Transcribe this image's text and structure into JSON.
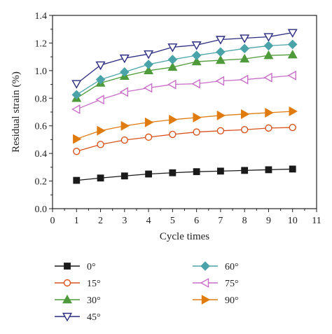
{
  "chart_data": {
    "type": "line",
    "title": "",
    "xlabel": "Cycle times",
    "ylabel": "Residual strain (%)",
    "xlim": [
      0,
      11
    ],
    "ylim": [
      0,
      1.4
    ],
    "xticks": [
      "0",
      "1",
      "2",
      "3",
      "4",
      "5",
      "6",
      "7",
      "8",
      "9",
      "10",
      "11"
    ],
    "yticks": [
      "0.0",
      "0.2",
      "0.4",
      "0.6",
      "0.8",
      "1.0",
      "1.2",
      "1.4"
    ],
    "grid": false,
    "legend_position": "bottom",
    "x": [
      1,
      2,
      3,
      4,
      5,
      6,
      7,
      8,
      9,
      10
    ],
    "series": [
      {
        "name": "0°",
        "color": "#1a1a1a",
        "marker": "square-filled",
        "values": [
          0.205,
          0.222,
          0.237,
          0.251,
          0.26,
          0.268,
          0.272,
          0.277,
          0.282,
          0.287
        ]
      },
      {
        "name": "15°",
        "color": "#d9531e",
        "marker": "circle-open",
        "values": [
          0.415,
          0.465,
          0.497,
          0.518,
          0.538,
          0.555,
          0.564,
          0.572,
          0.584,
          0.588
        ]
      },
      {
        "name": "30°",
        "color": "#4f9a3a",
        "marker": "triangle-up-filled",
        "values": [
          0.8,
          0.91,
          0.96,
          1.0,
          1.025,
          1.065,
          1.075,
          1.085,
          1.11,
          1.115
        ]
      },
      {
        "name": "45°",
        "color": "#2b2b80",
        "marker": "triangle-down-open",
        "values": [
          0.905,
          1.04,
          1.09,
          1.12,
          1.17,
          1.185,
          1.225,
          1.235,
          1.245,
          1.275
        ]
      },
      {
        "name": "60°",
        "color": "#4aa3a8",
        "marker": "diamond-filled",
        "values": [
          0.825,
          0.935,
          0.99,
          1.045,
          1.08,
          1.11,
          1.135,
          1.16,
          1.18,
          1.19
        ]
      },
      {
        "name": "75°",
        "color": "#c86ec8",
        "marker": "triangle-left-open",
        "values": [
          0.72,
          0.79,
          0.845,
          0.875,
          0.9,
          0.905,
          0.925,
          0.935,
          0.95,
          0.965
        ]
      },
      {
        "name": "90°",
        "color": "#e07b10",
        "marker": "triangle-right-filled",
        "values": [
          0.505,
          0.565,
          0.6,
          0.625,
          0.645,
          0.66,
          0.675,
          0.685,
          0.695,
          0.705
        ]
      }
    ]
  }
}
